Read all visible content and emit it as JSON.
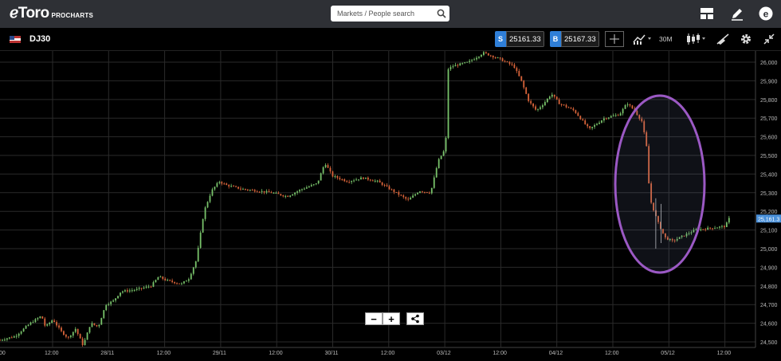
{
  "header": {
    "logo_text": "ℯToro",
    "logo_sub": "PROCHARTS",
    "search_placeholder": "Markets / People search"
  },
  "toolbar": {
    "instrument": "DJ30",
    "sell_label": "S",
    "sell_price": "25161.33",
    "buy_label": "B",
    "buy_price": "25167.33",
    "interval": "30M"
  },
  "colors": {
    "up": "#78c26a",
    "down": "#d9643a",
    "grid": "#2a2a2a",
    "highlight": "#9b59c4",
    "price_tag": "#4a90d9"
  },
  "chart_data": {
    "type": "candlestick",
    "instrument": "DJ30",
    "interval": "30M",
    "current_price_label": "25,161.3",
    "current_price": 25161.3,
    "y_ticks": [
      "26,000",
      "25,900",
      "25,800",
      "25,700",
      "25,600",
      "25,500",
      "25,400",
      "25,300",
      "25,200",
      "25,100",
      "25,000",
      "24,900",
      "24,800",
      "24,700",
      "24,600",
      "24,500"
    ],
    "y_range": [
      24470,
      26060
    ],
    "x_ticks": [
      "12:00",
      "28/11",
      "12:00",
      "29/11",
      "12:00",
      "30/11",
      "12:00",
      "03/12",
      "12:00",
      "04/12",
      "12:00",
      "05/12",
      "12:00"
    ],
    "x_tick_prefix": ":00",
    "grid": true,
    "annotation": "purple ellipse highlighting the sharp drop on 04/12",
    "series_path": [
      [
        0,
        24510
      ],
      [
        0.02,
        24530
      ],
      [
        0.04,
        24600
      ],
      [
        0.055,
        24640
      ],
      [
        0.06,
        24580
      ],
      [
        0.07,
        24620
      ],
      [
        0.08,
        24560
      ],
      [
        0.09,
        24520
      ],
      [
        0.1,
        24570
      ],
      [
        0.11,
        24480
      ],
      [
        0.12,
        24600
      ],
      [
        0.13,
        24580
      ],
      [
        0.14,
        24700
      ],
      [
        0.15,
        24720
      ],
      [
        0.16,
        24770
      ],
      [
        0.18,
        24780
      ],
      [
        0.2,
        24800
      ],
      [
        0.21,
        24850
      ],
      [
        0.22,
        24830
      ],
      [
        0.24,
        24810
      ],
      [
        0.25,
        24840
      ],
      [
        0.26,
        24940
      ],
      [
        0.27,
        25200
      ],
      [
        0.28,
        25310
      ],
      [
        0.29,
        25360
      ],
      [
        0.3,
        25340
      ],
      [
        0.32,
        25320
      ],
      [
        0.34,
        25310
      ],
      [
        0.36,
        25300
      ],
      [
        0.38,
        25280
      ],
      [
        0.4,
        25320
      ],
      [
        0.42,
        25350
      ],
      [
        0.43,
        25460
      ],
      [
        0.44,
        25390
      ],
      [
        0.46,
        25360
      ],
      [
        0.48,
        25380
      ],
      [
        0.5,
        25360
      ],
      [
        0.52,
        25310
      ],
      [
        0.54,
        25260
      ],
      [
        0.555,
        25310
      ],
      [
        0.57,
        25300
      ],
      [
        0.58,
        25470
      ],
      [
        0.59,
        25540
      ],
      [
        0.592,
        25960
      ],
      [
        0.6,
        25980
      ],
      [
        0.62,
        26000
      ],
      [
        0.64,
        26050
      ],
      [
        0.66,
        26020
      ],
      [
        0.68,
        25980
      ],
      [
        0.69,
        25900
      ],
      [
        0.7,
        25790
      ],
      [
        0.71,
        25740
      ],
      [
        0.72,
        25780
      ],
      [
        0.73,
        25830
      ],
      [
        0.74,
        25780
      ],
      [
        0.76,
        25740
      ],
      [
        0.78,
        25640
      ],
      [
        0.8,
        25700
      ],
      [
        0.82,
        25720
      ],
      [
        0.83,
        25780
      ],
      [
        0.84,
        25740
      ],
      [
        0.85,
        25680
      ],
      [
        0.856,
        25540
      ],
      [
        0.86,
        25270
      ],
      [
        0.87,
        25150
      ],
      [
        0.88,
        25060
      ],
      [
        0.89,
        25040
      ],
      [
        0.9,
        25060
      ],
      [
        0.91,
        25080
      ],
      [
        0.92,
        25100
      ],
      [
        0.94,
        25110
      ],
      [
        0.96,
        25120
      ],
      [
        0.965,
        25161
      ]
    ]
  }
}
